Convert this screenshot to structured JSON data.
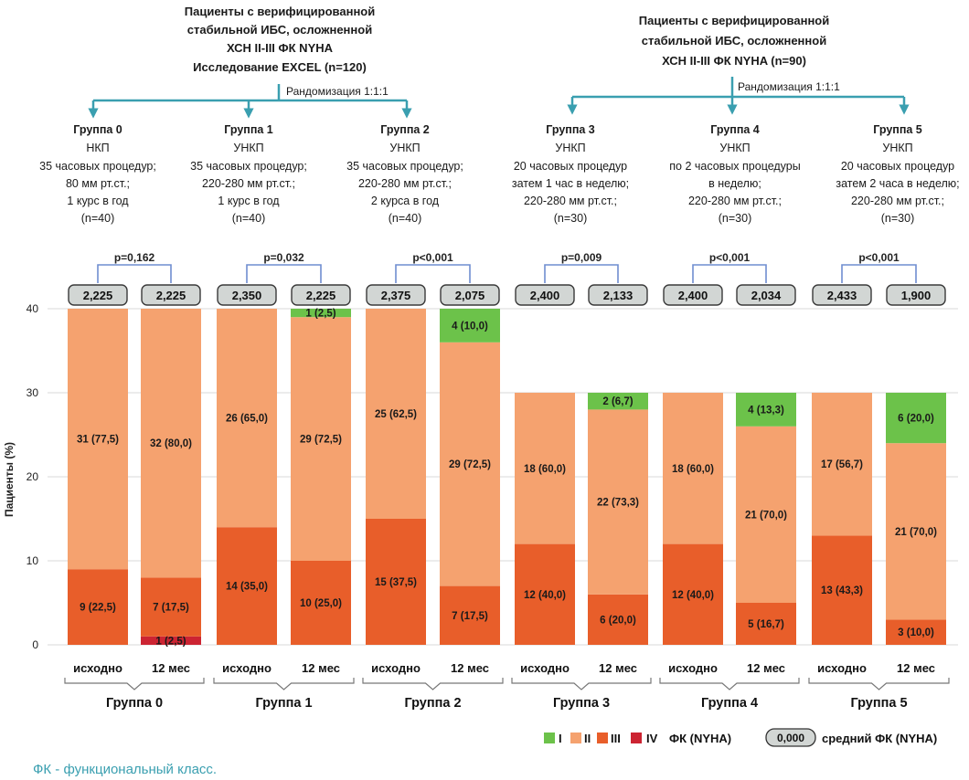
{
  "headers": [
    {
      "lines": [
        "Пациенты с верифицированной",
        "стабильной ИБС, осложненной",
        "ХСН II-III ФК NYHA",
        "Исследование EXCEL (n=120)"
      ],
      "randomization": "Рандомизация 1:1:1"
    },
    {
      "lines": [
        "Пациенты с верифицированной",
        "стабильной ИБС, осложненной",
        "ХСН II-III ФК NYHA (n=90)"
      ],
      "randomization": "Рандомизация 1:1:1"
    }
  ],
  "groups": [
    {
      "title": "Группа 0",
      "lines": [
        "НКП",
        "35 часовых процедур;",
        "80 мм рт.ст.;",
        "1 курс в год",
        "(n=40)"
      ]
    },
    {
      "title": "Группа 1",
      "lines": [
        "УНКП",
        "35 часовых процедур;",
        "220-280 мм рт.ст.;",
        "1 курс в год",
        "(n=40)"
      ]
    },
    {
      "title": "Группа 2",
      "lines": [
        "УНКП",
        "35 часовых процедур;",
        "220-280 мм рт.ст.;",
        "2 курса в год",
        "(n=40)"
      ]
    },
    {
      "title": "Группа 3",
      "lines": [
        "УНКП",
        "20 часовых процедур",
        "затем 1 час в неделю;",
        "220-280 мм рт.ст.;",
        "(n=30)"
      ]
    },
    {
      "title": "Группа 4",
      "lines": [
        "УНКП",
        "по 2 часовых процедуры",
        "в неделю;",
        "220-280 мм рт.ст.;",
        "(n=30)"
      ]
    },
    {
      "title": "Группа 5",
      "lines": [
        "УНКП",
        "20 часовых процедур",
        "затем 2 часа в неделю;",
        "220-280 мм рт.ст.;",
        "(n=30)"
      ]
    }
  ],
  "chart_data": {
    "type": "bar",
    "stacked": true,
    "ylabel": "Пациенты (%)",
    "ylim": [
      0,
      40
    ],
    "yticks": [
      0,
      10,
      20,
      30,
      40
    ],
    "grid": true,
    "bar_labels": [
      "исходно",
      "12 мес"
    ],
    "group_labels": [
      "Группа 0",
      "Группа 1",
      "Группа 2",
      "Группа 3",
      "Группа 4",
      "Группа 5"
    ],
    "p_values": [
      "p=0,162",
      "p=0,032",
      "p<0,001",
      "p=0,009",
      "p<0,001",
      "p<0,001"
    ],
    "bars": [
      {
        "group": "Группа 0",
        "time": "исходно",
        "mean_fc": "2,225",
        "segments": [
          {
            "class": "III",
            "value": 9,
            "label": "9 (22,5)"
          },
          {
            "class": "II",
            "value": 31,
            "label": "31 (77,5)"
          }
        ]
      },
      {
        "group": "Группа 0",
        "time": "12 мес",
        "mean_fc": "2,225",
        "segments": [
          {
            "class": "IV",
            "value": 1,
            "label": "1 (2,5)"
          },
          {
            "class": "III",
            "value": 7,
            "label": "7 (17,5)"
          },
          {
            "class": "II",
            "value": 32,
            "label": "32 (80,0)"
          }
        ]
      },
      {
        "group": "Группа 1",
        "time": "исходно",
        "mean_fc": "2,350",
        "segments": [
          {
            "class": "III",
            "value": 14,
            "label": "14 (35,0)"
          },
          {
            "class": "II",
            "value": 26,
            "label": "26 (65,0)"
          }
        ]
      },
      {
        "group": "Группа 1",
        "time": "12 мес",
        "mean_fc": "2,225",
        "segments": [
          {
            "class": "III",
            "value": 10,
            "label": "10 (25,0)"
          },
          {
            "class": "II",
            "value": 29,
            "label": "29 (72,5)"
          },
          {
            "class": "I",
            "value": 1,
            "label": "1 (2,5)"
          }
        ]
      },
      {
        "group": "Группа 2",
        "time": "исходно",
        "mean_fc": "2,375",
        "segments": [
          {
            "class": "III",
            "value": 15,
            "label": "15 (37,5)"
          },
          {
            "class": "II",
            "value": 25,
            "label": "25 (62,5)"
          }
        ]
      },
      {
        "group": "Группа 2",
        "time": "12 мес",
        "mean_fc": "2,075",
        "segments": [
          {
            "class": "III",
            "value": 7,
            "label": "7 (17,5)"
          },
          {
            "class": "II",
            "value": 29,
            "label": "29 (72,5)"
          },
          {
            "class": "I",
            "value": 4,
            "label": "4 (10,0)"
          }
        ]
      },
      {
        "group": "Группа 3",
        "time": "исходно",
        "mean_fc": "2,400",
        "segments": [
          {
            "class": "III",
            "value": 12,
            "label": "12 (40,0)"
          },
          {
            "class": "II",
            "value": 18,
            "label": "18 (60,0)"
          }
        ]
      },
      {
        "group": "Группа 3",
        "time": "12 мес",
        "mean_fc": "2,133",
        "segments": [
          {
            "class": "III",
            "value": 6,
            "label": "6 (20,0)"
          },
          {
            "class": "II",
            "value": 22,
            "label": "22 (73,3)"
          },
          {
            "class": "I",
            "value": 2,
            "label": "2 (6,7)"
          }
        ]
      },
      {
        "group": "Группа 4",
        "time": "исходно",
        "mean_fc": "2,400",
        "segments": [
          {
            "class": "III",
            "value": 12,
            "label": "12 (40,0)"
          },
          {
            "class": "II",
            "value": 18,
            "label": "18 (60,0)"
          }
        ]
      },
      {
        "group": "Группа 4",
        "time": "12 мес",
        "mean_fc": "2,034",
        "segments": [
          {
            "class": "III",
            "value": 5,
            "label": "5 (16,7)"
          },
          {
            "class": "II",
            "value": 21,
            "label": "21 (70,0)"
          },
          {
            "class": "I",
            "value": 4,
            "label": "4 (13,3)"
          }
        ]
      },
      {
        "group": "Группа 5",
        "time": "исходно",
        "mean_fc": "2,433",
        "segments": [
          {
            "class": "III",
            "value": 13,
            "label": "13 (43,3)"
          },
          {
            "class": "II",
            "value": 17,
            "label": "17 (56,7)"
          }
        ]
      },
      {
        "group": "Группа 5",
        "time": "12 мес",
        "mean_fc": "1,900",
        "segments": [
          {
            "class": "III",
            "value": 3,
            "label": "3 (10,0)"
          },
          {
            "class": "II",
            "value": 21,
            "label": "21 (70,0)"
          },
          {
            "class": "I",
            "value": 6,
            "label": "6 (20,0)"
          }
        ]
      }
    ],
    "legend": {
      "placement": "bottom-right",
      "classes": [
        {
          "class": "I",
          "color": "#6cc24a"
        },
        {
          "class": "II",
          "color": "#f5a26f"
        },
        {
          "class": "III",
          "color": "#e85e2a"
        },
        {
          "class": "IV",
          "color": "#cc2432"
        }
      ],
      "fc_label": "ФК (NYHA)",
      "mean_sample": "0,000",
      "mean_label": "средний ФК (NYHA)"
    }
  },
  "colors": {
    "I": "#6cc24a",
    "II": "#f5a26f",
    "III": "#e85e2a",
    "IV": "#cc2432",
    "flow_arrow": "#3a9fb0",
    "p_bracket": "#6f8ed0",
    "mean_box": "#d2d6d4"
  },
  "footer": "ФК - функциональный класс."
}
